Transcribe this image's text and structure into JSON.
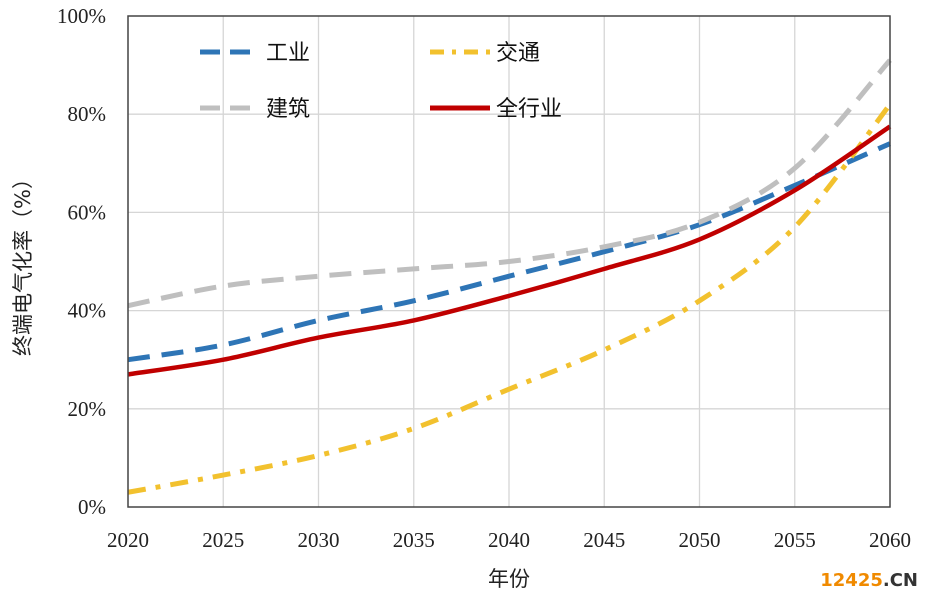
{
  "chart_data": {
    "type": "line",
    "title": "",
    "xlabel": "年份",
    "ylabel": "终端电气化率（%）",
    "x": [
      2020,
      2025,
      2030,
      2035,
      2040,
      2045,
      2050,
      2055,
      2060
    ],
    "xticks": [
      "2020",
      "2025",
      "2030",
      "2035",
      "2040",
      "2045",
      "2050",
      "2055",
      "2060"
    ],
    "yticks": [
      "0%",
      "20%",
      "40%",
      "60%",
      "80%",
      "100%"
    ],
    "ylim": [
      0,
      100
    ],
    "xlim": [
      2020,
      2060
    ],
    "grid": true,
    "legend_position": "top-left",
    "series": [
      {
        "name": "工业",
        "color": "#2E75B6",
        "style": "dashed",
        "values": [
          30,
          33,
          38,
          42,
          47,
          52,
          57.5,
          65.5,
          74
        ]
      },
      {
        "name": "交通",
        "color": "#F2C12E",
        "style": "dashdot",
        "values": [
          3,
          6.5,
          10.5,
          16,
          24,
          32,
          42,
          57,
          82
        ]
      },
      {
        "name": "建筑",
        "color": "#BFBFBF",
        "style": "dashed",
        "values": [
          41,
          45,
          47,
          48.5,
          50,
          53,
          58,
          69,
          91
        ]
      },
      {
        "name": "全行业",
        "color": "#C00000",
        "style": "solid",
        "values": [
          27,
          30,
          34.5,
          38,
          43,
          48.5,
          54.5,
          64.5,
          77.5
        ]
      }
    ]
  },
  "watermark": {
    "text_a": "12425",
    "text_b": ".CN",
    "color_a": "#F08A00",
    "color_b": "#333333"
  }
}
